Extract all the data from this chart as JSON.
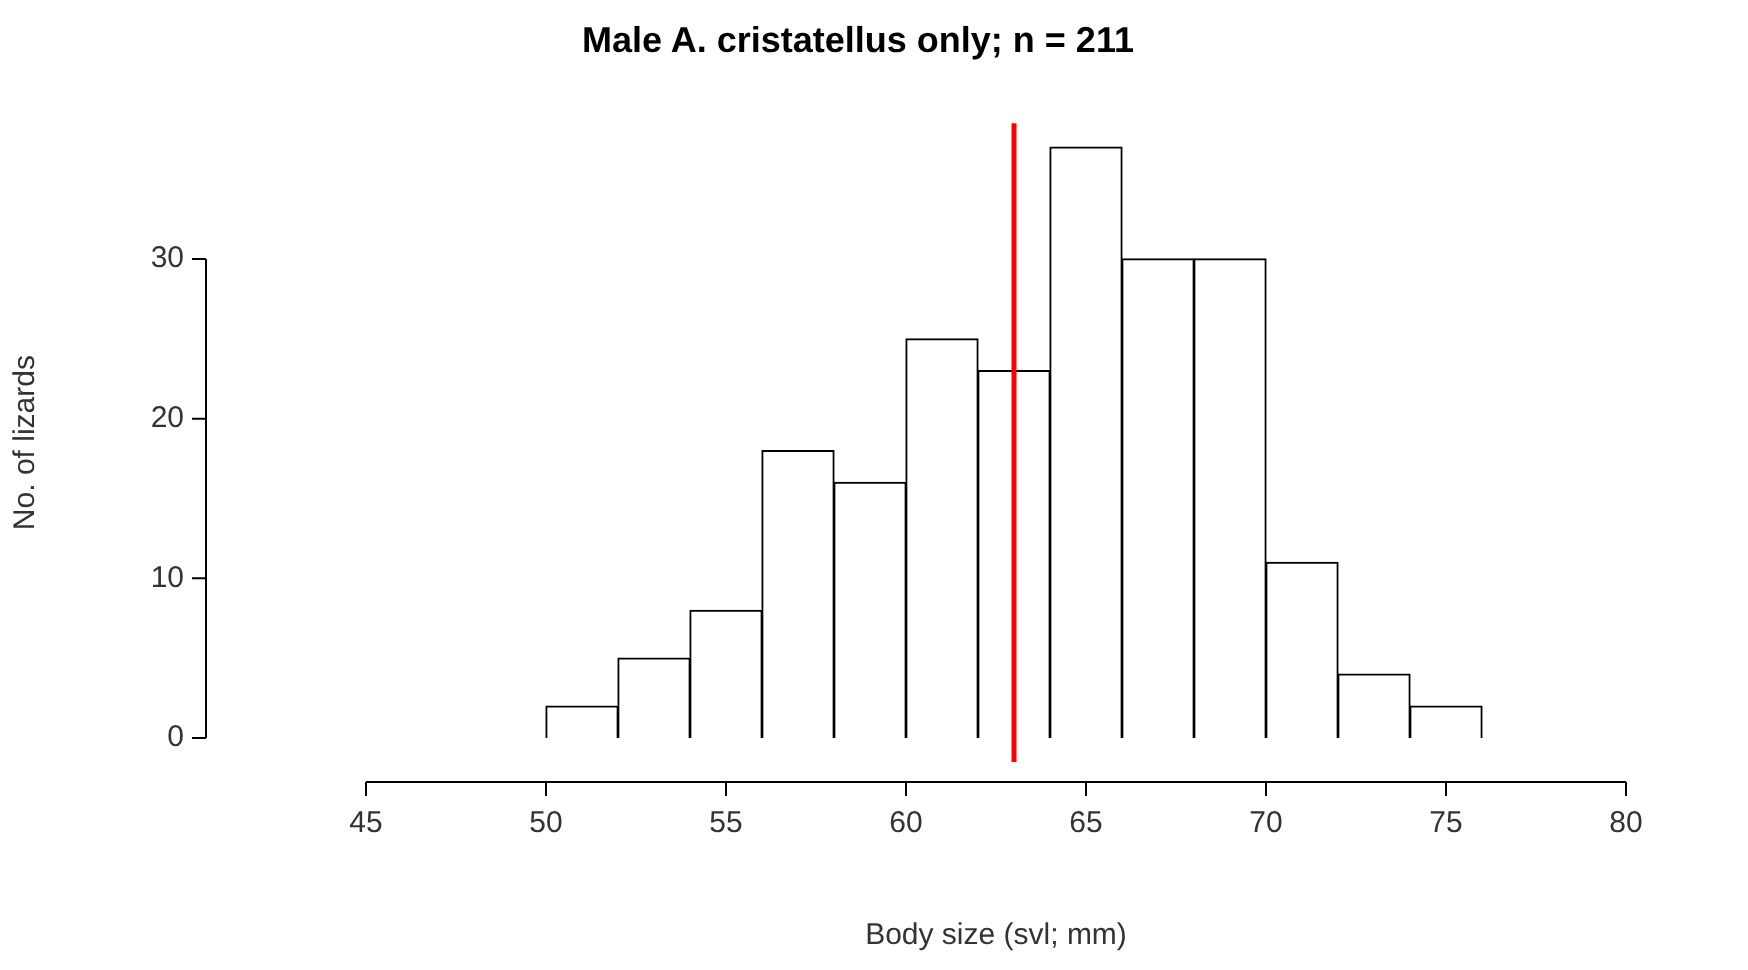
{
  "chart_data": {
    "type": "histogram",
    "title": "Male A. cristatellus only; n = 211",
    "xlabel": "Body size (svl; mm)",
    "ylabel": "No. of lizards",
    "bins": [
      50,
      52,
      54,
      56,
      58,
      60,
      62,
      64,
      66,
      68,
      70,
      72,
      74,
      76
    ],
    "values": [
      2,
      5,
      8,
      18,
      16,
      25,
      23,
      37,
      30,
      30,
      11,
      4,
      2
    ],
    "color": "#ffffff",
    "xlim": [
      45,
      80
    ],
    "xticks": [
      45,
      50,
      55,
      60,
      65,
      70,
      75,
      80
    ],
    "ylim": [
      -1.5,
      38.5
    ],
    "yticks": [
      0,
      10,
      20,
      30
    ],
    "grid": false,
    "ref_lines": [
      {
        "axis": "x",
        "value": 63,
        "color": "#ff0000"
      }
    ]
  }
}
